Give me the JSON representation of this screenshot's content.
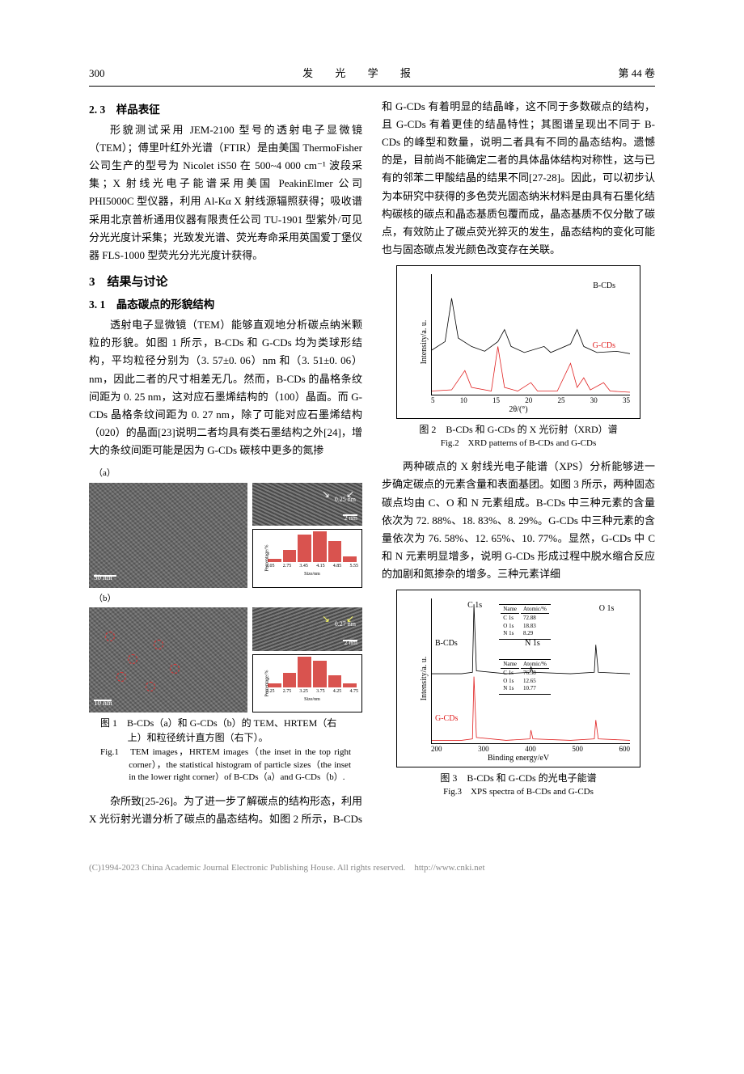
{
  "header": {
    "page_num": "300",
    "journal": "发 光 学 报",
    "volume": "第 44 卷"
  },
  "s23": {
    "heading": "2. 3　样品表征",
    "p1": "形貌测试采用 JEM-2100 型号的透射电子显微镜（TEM）；傅里叶红外光谱（FTIR）是由美国 ThermoFisher 公司生产的型号为 Nicolet iS50 在 500~4 000 cm⁻¹ 波段采集；X 射线光电子能谱采用美国 PeakinElmer 公司 PHI5000C 型仪器，利用 Al-Kα X 射线源辐照获得；吸收谱采用北京普析通用仪器有限责任公司 TU-1901 型紫外/可见分光光度计采集；光致发光谱、荧光寿命采用英国爱丁堡仪器 FLS-1000 型荧光分光光度计获得。"
  },
  "s3": {
    "heading": "3　结果与讨论"
  },
  "s31": {
    "heading": "3. 1　晶态碳点的形貌结构",
    "p1": "透射电子显微镜（TEM）能够直观地分析碳点纳米颗粒的形貌。如图 1 所示，B-CDs 和 G-CDs 均为类球形结构，平均粒径分别为（3. 57±0. 06）nm 和（3. 51±0. 06）nm，因此二者的尺寸相差无几。然而，B-CDs 的晶格条纹间距为 0. 25 nm，这对应石墨烯结构的（100）晶面。而 G-CDs 晶格条纹间距为 0. 27 nm，除了可能对应石墨烯结构（020）的晶面[23]说明二者均具有类石墨结构之外[24]，增大的条纹间距可能是因为 G-CDs 碳核中更多的氮掺",
    "p2_cont": "杂所致[25-26]。为了进一步了解碳点的结构形态，利用 X 光衍射光谱分析了碳点的晶态结构。如图 2 所示，B-CDs 和 G-CDs 有着明显的结晶峰，这不同于多数碳点的结构，且 G-CDs 有着更佳的结晶特性；其图谱呈现出不同于 B-CDs 的峰型和数量，说明二者具有不同的晶态结构。遗憾的是，目前尚不能确定二者的具体晶体结构对称性，这与已有的邻苯二甲酸结晶的结果不同[27-28]。因此，可以初步认为本研究中获得的多色荧光固态纳米材料是由具有石墨化结构碳核的碳点和晶态基质包覆而成，晶态基质不仅分散了碳点，有效防止了碳点荧光猝灭的发生，晶态结构的变化可能也与固态碳点发光颜色改变存在关联。",
    "p3": "两种碳点的 X 射线光电子能谱（XPS）分析能够进一步确定碳点的元素含量和表面基团。如图 3 所示，两种固态碳点均由 C、O 和 N 元素组成。B-CDs 中三种元素的含量依次为 72. 88%、18. 83%、8. 29%。G-CDs 中三种元素的含量依次为 76. 58%、12. 65%、10. 77%。显然，G-CDs 中 C 和 N 元素明显增多，说明 G-CDs 形成过程中脱水缩合反应的加剧和氮掺杂的增多。三种元素详细"
  },
  "fig1": {
    "label_a": "（a）",
    "label_b": "（b）",
    "lattice_a": "0.25 nm",
    "lattice_b": "0.27 nm",
    "scale_a": "50 nm",
    "scale_b": "10 nm",
    "scale_hr": "2 nm",
    "histo_a": {
      "x": [
        "2.05",
        "2.75",
        "3.45",
        "4.15",
        "4.85",
        "5.55"
      ],
      "heights": [
        5,
        18,
        40,
        44,
        30,
        8
      ],
      "xlabel": "Size/nm",
      "ylabel": "Percentage/%",
      "bar_color": "#d9534f"
    },
    "histo_b": {
      "x": [
        "2.25",
        "2.75",
        "3.25",
        "3.75",
        "4.25",
        "4.75"
      ],
      "heights": [
        6,
        22,
        46,
        40,
        18,
        6
      ],
      "xlabel": "Size/nm",
      "ylabel": "Percentage/%",
      "bar_color": "#d9534f"
    },
    "cap_cn": "图 1　B-CDs（a）和 G-CDs（b）的 TEM、HRTEM（右上）和粒径统计直方图（右下）。",
    "cap_en": "Fig.1　TEM images，HRTEM images（the inset in the top right corner），the statistical histogram of particle siz​es（the inset in the lower right corner）of B-CDs（a）and G-CDs（b）."
  },
  "fig2": {
    "type": "line",
    "series": [
      {
        "label": "B-CDs",
        "color": "#000000",
        "y_offset": 32,
        "points": [
          [
            5,
            5
          ],
          [
            7,
            12
          ],
          [
            8,
            48
          ],
          [
            9,
            15
          ],
          [
            11,
            8
          ],
          [
            13,
            4
          ],
          [
            15,
            12
          ],
          [
            16,
            22
          ],
          [
            17,
            8
          ],
          [
            19,
            3
          ],
          [
            22,
            8
          ],
          [
            23,
            3
          ],
          [
            26,
            10
          ],
          [
            27,
            22
          ],
          [
            28,
            8
          ],
          [
            30,
            3
          ],
          [
            33,
            4
          ],
          [
            35,
            2
          ]
        ]
      },
      {
        "label": "G-CDs",
        "color": "#e02020",
        "y_offset": 0,
        "points": [
          [
            5,
            3
          ],
          [
            8,
            4
          ],
          [
            10,
            20
          ],
          [
            11,
            6
          ],
          [
            14,
            3
          ],
          [
            15,
            40
          ],
          [
            16,
            6
          ],
          [
            18,
            3
          ],
          [
            20,
            10
          ],
          [
            21,
            3
          ],
          [
            24,
            3
          ],
          [
            26,
            26
          ],
          [
            27,
            6
          ],
          [
            28,
            14
          ],
          [
            29,
            4
          ],
          [
            31,
            10
          ],
          [
            32,
            3
          ],
          [
            35,
            2
          ]
        ]
      }
    ],
    "xlim": [
      5,
      35
    ],
    "ylim": [
      0,
      100
    ],
    "xticks": [
      5,
      10,
      15,
      20,
      25,
      30,
      35
    ],
    "xlabel": "2θ/(°)",
    "ylabel": "Intensity/a. u.",
    "background": "#ffffff",
    "cap_cn": "图 2　B-CDs 和 G-CDs 的 X 光衍射（XRD）谱",
    "cap_en": "Fig.2　XRD patterns of B-CDs and G-CDs"
  },
  "fig3": {
    "type": "line",
    "series": [
      {
        "label": "B-CDs",
        "color": "#000000",
        "y_offset": 46,
        "points": [
          [
            200,
            2
          ],
          [
            260,
            2
          ],
          [
            282,
            3
          ],
          [
            285,
            50
          ],
          [
            290,
            4
          ],
          [
            350,
            2
          ],
          [
            398,
            3
          ],
          [
            400,
            7
          ],
          [
            404,
            3
          ],
          [
            480,
            2
          ],
          [
            528,
            3
          ],
          [
            531,
            22
          ],
          [
            536,
            3
          ],
          [
            600,
            2
          ]
        ],
        "peaks": {
          "C 1s": "C 1s",
          "N 1s": "N 1s",
          "O 1s": "O 1s"
        }
      },
      {
        "label": "G-CDs",
        "color": "#e02020",
        "y_offset": 0,
        "points": [
          [
            200,
            2
          ],
          [
            260,
            2
          ],
          [
            282,
            3
          ],
          [
            285,
            46
          ],
          [
            290,
            4
          ],
          [
            350,
            2
          ],
          [
            398,
            3
          ],
          [
            400,
            9
          ],
          [
            404,
            3
          ],
          [
            480,
            2
          ],
          [
            528,
            3
          ],
          [
            531,
            16
          ],
          [
            536,
            3
          ],
          [
            600,
            2
          ]
        ]
      }
    ],
    "atomic_b": {
      "title": [
        "Name",
        "Atomic/%"
      ],
      "rows": [
        [
          "C 1s",
          "72.88"
        ],
        [
          "O 1s",
          "18.83"
        ],
        [
          "N 1s",
          "8.29"
        ]
      ]
    },
    "atomic_g": {
      "title": [
        "Name",
        "Atomic/%"
      ],
      "rows": [
        [
          "C 1s",
          "76.58"
        ],
        [
          "O 1s",
          "12.65"
        ],
        [
          "N 1s",
          "10.77"
        ]
      ]
    },
    "xlim": [
      200,
      600
    ],
    "ylim": [
      0,
      100
    ],
    "xticks": [
      200,
      300,
      400,
      500,
      600
    ],
    "xlabel": "Binding energy/eV",
    "ylabel": "Intensity/a. u.",
    "cap_cn": "图 3　B-CDs 和 G-CDs 的光电子能谱",
    "cap_en": "Fig.3　XPS spectra of B-CDs and G-CDs"
  },
  "footer": "(C)1994-2023 China Academic Journal Electronic Publishing House. All rights reserved.　http://www.cnki.net"
}
